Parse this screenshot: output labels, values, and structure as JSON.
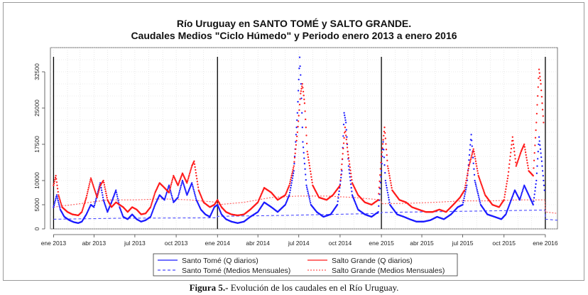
{
  "caption": {
    "label": "Figura 5.-",
    "text": " Evolución de los caudales en el Río Uruguay."
  },
  "chart_data": {
    "type": "line",
    "title": "Río Uruguay en SANTO TOMÉ y SALTO GRANDE.",
    "subtitle": "Caudales Medios \"Ciclo Húmedo\" y Periodo enero 2013 a enero 2016",
    "xlabel": "",
    "ylabel": "",
    "xlim": [
      "2012-12-25",
      "2016-01-28"
    ],
    "ylim": [
      0,
      37500
    ],
    "x_ticks": [
      {
        "date": "2013-01-01",
        "label": "ene 2013"
      },
      {
        "date": "2013-04-01",
        "label": "abr 2013"
      },
      {
        "date": "2013-07-01",
        "label": "jul 2013"
      },
      {
        "date": "2013-10-01",
        "label": "oct 2013"
      },
      {
        "date": "2014-01-01",
        "label": "ene 2014"
      },
      {
        "date": "2014-04-01",
        "label": "abr 2014"
      },
      {
        "date": "2014-07-01",
        "label": "jul 2014"
      },
      {
        "date": "2014-10-01",
        "label": "oct 2014"
      },
      {
        "date": "2015-01-01",
        "label": "ene 2015"
      },
      {
        "date": "2015-04-01",
        "label": "abr 2015"
      },
      {
        "date": "2015-07-01",
        "label": "jul 2015"
      },
      {
        "date": "2015-10-01",
        "label": "oct 2015"
      },
      {
        "date": "2016-01-01",
        "label": "ene 2016"
      }
    ],
    "y_ticks": [
      0,
      5000,
      10000,
      17500,
      25000,
      32500
    ],
    "year_lines": [
      "2013-01-01",
      "2014-01-01",
      "2015-01-01",
      "2016-01-01"
    ],
    "grid": true,
    "legend_position": "bottom",
    "series": [
      {
        "name": "Santo Tomé (Q diarios)",
        "style": "dots",
        "color": "#1a1aff",
        "points": [
          [
            "2013-01-01",
            4500
          ],
          [
            "2013-01-08",
            7000
          ],
          [
            "2013-01-16",
            4000
          ],
          [
            "2013-01-25",
            2500
          ],
          [
            "2013-02-05",
            1800
          ],
          [
            "2013-02-15",
            1400
          ],
          [
            "2013-02-25",
            1200
          ],
          [
            "2013-03-05",
            1500
          ],
          [
            "2013-03-15",
            3000
          ],
          [
            "2013-03-25",
            5000
          ],
          [
            "2013-04-01",
            4500
          ],
          [
            "2013-04-08",
            7000
          ],
          [
            "2013-04-15",
            9500
          ],
          [
            "2013-04-22",
            6000
          ],
          [
            "2013-05-01",
            3500
          ],
          [
            "2013-05-10",
            5500
          ],
          [
            "2013-05-20",
            8000
          ],
          [
            "2013-05-28",
            4500
          ],
          [
            "2013-06-05",
            2500
          ],
          [
            "2013-06-15",
            2000
          ],
          [
            "2013-06-25",
            3000
          ],
          [
            "2013-07-05",
            2000
          ],
          [
            "2013-07-15",
            1500
          ],
          [
            "2013-07-25",
            1800
          ],
          [
            "2013-08-05",
            2500
          ],
          [
            "2013-08-15",
            5000
          ],
          [
            "2013-08-25",
            7000
          ],
          [
            "2013-09-05",
            6000
          ],
          [
            "2013-09-15",
            9000
          ],
          [
            "2013-09-25",
            5500
          ],
          [
            "2013-10-05",
            6500
          ],
          [
            "2013-10-15",
            10000
          ],
          [
            "2013-10-25",
            7000
          ],
          [
            "2013-11-05",
            9500
          ],
          [
            "2013-11-15",
            6000
          ],
          [
            "2013-11-25",
            4000
          ],
          [
            "2013-12-05",
            3000
          ],
          [
            "2013-12-15",
            2500
          ],
          [
            "2013-12-25",
            4500
          ],
          [
            "2014-01-01",
            5000
          ],
          [
            "2014-01-10",
            3000
          ],
          [
            "2014-01-20",
            2000
          ],
          [
            "2014-02-01",
            1500
          ],
          [
            "2014-02-15",
            1200
          ],
          [
            "2014-03-01",
            1500
          ],
          [
            "2014-03-15",
            2500
          ],
          [
            "2014-04-01",
            3500
          ],
          [
            "2014-04-15",
            5500
          ],
          [
            "2014-05-01",
            4500
          ],
          [
            "2014-05-15",
            3500
          ],
          [
            "2014-06-01",
            5000
          ],
          [
            "2014-06-10",
            7000
          ],
          [
            "2014-06-20",
            12000
          ],
          [
            "2014-06-28",
            24000
          ],
          [
            "2014-07-03",
            35500
          ],
          [
            "2014-07-06",
            30000
          ],
          [
            "2014-07-10",
            18000
          ],
          [
            "2014-07-18",
            9000
          ],
          [
            "2014-07-28",
            5000
          ],
          [
            "2014-08-10",
            3500
          ],
          [
            "2014-08-25",
            2500
          ],
          [
            "2014-09-10",
            3000
          ],
          [
            "2014-09-25",
            5000
          ],
          [
            "2014-10-05",
            12000
          ],
          [
            "2014-10-10",
            24000
          ],
          [
            "2014-10-14",
            22000
          ],
          [
            "2014-10-20",
            13000
          ],
          [
            "2014-10-28",
            7000
          ],
          [
            "2014-11-10",
            4000
          ],
          [
            "2014-11-25",
            3000
          ],
          [
            "2014-12-10",
            2500
          ],
          [
            "2014-12-25",
            3500
          ],
          [
            "2015-01-01",
            12000
          ],
          [
            "2015-01-05",
            18000
          ],
          [
            "2015-01-10",
            10000
          ],
          [
            "2015-01-20",
            5000
          ],
          [
            "2015-02-05",
            3000
          ],
          [
            "2015-02-20",
            2500
          ],
          [
            "2015-03-05",
            2000
          ],
          [
            "2015-03-20",
            1500
          ],
          [
            "2015-04-05",
            1500
          ],
          [
            "2015-04-20",
            1800
          ],
          [
            "2015-05-05",
            2500
          ],
          [
            "2015-05-20",
            2000
          ],
          [
            "2015-06-05",
            3000
          ],
          [
            "2015-06-20",
            4500
          ],
          [
            "2015-07-01",
            5000
          ],
          [
            "2015-07-10",
            9000
          ],
          [
            "2015-07-20",
            19500
          ],
          [
            "2015-07-28",
            10000
          ],
          [
            "2015-08-10",
            5000
          ],
          [
            "2015-08-25",
            3000
          ],
          [
            "2015-09-10",
            2500
          ],
          [
            "2015-09-25",
            2000
          ],
          [
            "2015-10-05",
            3000
          ],
          [
            "2015-10-15",
            5500
          ],
          [
            "2015-10-25",
            8000
          ],
          [
            "2015-11-05",
            6000
          ],
          [
            "2015-11-15",
            9000
          ],
          [
            "2015-11-25",
            7000
          ],
          [
            "2015-12-05",
            5000
          ],
          [
            "2015-12-12",
            10000
          ],
          [
            "2015-12-18",
            19000
          ],
          [
            "2015-12-24",
            14000
          ],
          [
            "2015-12-30",
            8000
          ]
        ]
      },
      {
        "name": "Salto Grande (Q diarios)",
        "style": "dots",
        "color": "#ff1a1a",
        "points": [
          [
            "2013-01-01",
            9000
          ],
          [
            "2013-01-06",
            11000
          ],
          [
            "2013-01-12",
            7000
          ],
          [
            "2013-01-20",
            4500
          ],
          [
            "2013-02-01",
            3500
          ],
          [
            "2013-02-12",
            3000
          ],
          [
            "2013-02-25",
            2800
          ],
          [
            "2013-03-05",
            3500
          ],
          [
            "2013-03-15",
            6500
          ],
          [
            "2013-03-25",
            10500
          ],
          [
            "2013-04-01",
            8500
          ],
          [
            "2013-04-08",
            6500
          ],
          [
            "2013-04-15",
            9000
          ],
          [
            "2013-04-22",
            10000
          ],
          [
            "2013-05-01",
            6000
          ],
          [
            "2013-05-10",
            4500
          ],
          [
            "2013-05-20",
            5500
          ],
          [
            "2013-06-05",
            4500
          ],
          [
            "2013-06-15",
            3500
          ],
          [
            "2013-06-25",
            4500
          ],
          [
            "2013-07-05",
            4000
          ],
          [
            "2013-07-15",
            3000
          ],
          [
            "2013-07-25",
            3200
          ],
          [
            "2013-08-05",
            4500
          ],
          [
            "2013-08-15",
            7500
          ],
          [
            "2013-08-25",
            9500
          ],
          [
            "2013-09-05",
            8500
          ],
          [
            "2013-09-15",
            7500
          ],
          [
            "2013-09-25",
            11000
          ],
          [
            "2013-10-05",
            9000
          ],
          [
            "2013-10-15",
            11500
          ],
          [
            "2013-10-25",
            9500
          ],
          [
            "2013-11-05",
            13000
          ],
          [
            "2013-11-10",
            14000
          ],
          [
            "2013-11-20",
            8000
          ],
          [
            "2013-12-01",
            5500
          ],
          [
            "2013-12-15",
            4500
          ],
          [
            "2013-12-25",
            5000
          ],
          [
            "2014-01-01",
            6000
          ],
          [
            "2014-01-10",
            4500
          ],
          [
            "2014-01-20",
            3500
          ],
          [
            "2014-02-01",
            3000
          ],
          [
            "2014-02-15",
            2800
          ],
          [
            "2014-03-01",
            3000
          ],
          [
            "2014-03-15",
            4000
          ],
          [
            "2014-04-01",
            5500
          ],
          [
            "2014-04-15",
            8500
          ],
          [
            "2014-05-01",
            7500
          ],
          [
            "2014-05-15",
            6000
          ],
          [
            "2014-06-01",
            7000
          ],
          [
            "2014-06-10",
            9000
          ],
          [
            "2014-06-20",
            13000
          ],
          [
            "2014-06-28",
            20000
          ],
          [
            "2014-07-05",
            28000
          ],
          [
            "2014-07-09",
            30000
          ],
          [
            "2014-07-14",
            26000
          ],
          [
            "2014-07-20",
            16000
          ],
          [
            "2014-08-01",
            9000
          ],
          [
            "2014-08-15",
            6500
          ],
          [
            "2014-09-01",
            6000
          ],
          [
            "2014-09-15",
            7000
          ],
          [
            "2014-10-01",
            9000
          ],
          [
            "2014-10-12",
            21000
          ],
          [
            "2014-10-18",
            16000
          ],
          [
            "2014-10-28",
            9500
          ],
          [
            "2014-11-10",
            7000
          ],
          [
            "2014-11-25",
            5500
          ],
          [
            "2014-12-10",
            5000
          ],
          [
            "2014-12-25",
            6000
          ],
          [
            "2015-01-01",
            15000
          ],
          [
            "2015-01-08",
            21000
          ],
          [
            "2015-01-15",
            13000
          ],
          [
            "2015-01-25",
            8000
          ],
          [
            "2015-02-10",
            6000
          ],
          [
            "2015-02-25",
            5500
          ],
          [
            "2015-03-10",
            4500
          ],
          [
            "2015-03-25",
            4000
          ],
          [
            "2015-04-10",
            3500
          ],
          [
            "2015-04-25",
            3500
          ],
          [
            "2015-05-10",
            4000
          ],
          [
            "2015-05-25",
            3500
          ],
          [
            "2015-06-10",
            5000
          ],
          [
            "2015-06-25",
            6500
          ],
          [
            "2015-07-05",
            8000
          ],
          [
            "2015-07-15",
            13000
          ],
          [
            "2015-07-25",
            16500
          ],
          [
            "2015-08-05",
            11000
          ],
          [
            "2015-08-20",
            7000
          ],
          [
            "2015-09-05",
            5000
          ],
          [
            "2015-09-20",
            4500
          ],
          [
            "2015-10-01",
            6000
          ],
          [
            "2015-10-10",
            11000
          ],
          [
            "2015-10-20",
            19000
          ],
          [
            "2015-10-28",
            13000
          ],
          [
            "2015-11-08",
            16000
          ],
          [
            "2015-11-15",
            17500
          ],
          [
            "2015-11-25",
            12000
          ],
          [
            "2015-12-05",
            11000
          ],
          [
            "2015-12-12",
            22000
          ],
          [
            "2015-12-18",
            33000
          ],
          [
            "2015-12-22",
            30000
          ],
          [
            "2015-12-28",
            22000
          ]
        ]
      },
      {
        "name": "Santo Tomé (Medios Mensuales)",
        "style": "dashed",
        "color": "#4a4aff",
        "points": [
          [
            "2013-01-01",
            2000
          ],
          [
            "2013-06-01",
            2200
          ],
          [
            "2013-12-31",
            2300
          ],
          [
            "2014-01-01",
            2600
          ],
          [
            "2014-06-01",
            2800
          ],
          [
            "2014-12-31",
            3200
          ],
          [
            "2015-01-01",
            3400
          ],
          [
            "2015-06-01",
            3600
          ],
          [
            "2015-12-31",
            3900
          ],
          [
            "2016-01-01",
            2000
          ],
          [
            "2016-01-28",
            1800
          ]
        ]
      },
      {
        "name": "Salto Grande (Medios Mensuales)",
        "style": "dashed",
        "color": "#ff5a5a",
        "points": [
          [
            "2013-01-01",
            4500
          ],
          [
            "2013-03-01",
            5200
          ],
          [
            "2013-05-01",
            6000
          ],
          [
            "2013-07-01",
            6000
          ],
          [
            "2013-09-01",
            6200
          ],
          [
            "2013-11-01",
            6000
          ],
          [
            "2013-12-31",
            5500
          ],
          [
            "2014-01-01",
            5000
          ],
          [
            "2014-03-01",
            5500
          ],
          [
            "2014-05-01",
            6500
          ],
          [
            "2014-07-01",
            6800
          ],
          [
            "2014-09-01",
            6800
          ],
          [
            "2014-11-01",
            6500
          ],
          [
            "2014-12-31",
            6000
          ],
          [
            "2015-01-01",
            5200
          ],
          [
            "2015-03-01",
            5300
          ],
          [
            "2015-05-01",
            5500
          ],
          [
            "2015-07-01",
            5800
          ],
          [
            "2015-09-01",
            5800
          ],
          [
            "2015-11-01",
            6000
          ],
          [
            "2015-12-31",
            6000
          ],
          [
            "2016-01-01",
            3500
          ],
          [
            "2016-01-28",
            3200
          ]
        ]
      }
    ]
  }
}
